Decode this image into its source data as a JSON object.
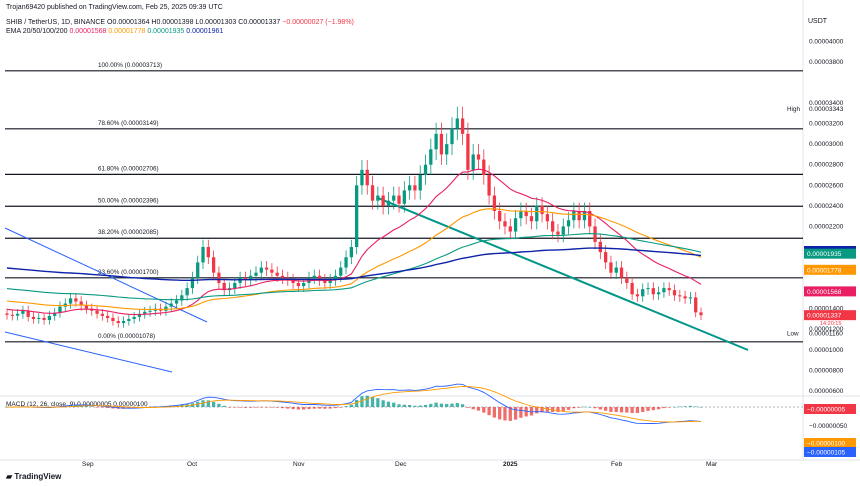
{
  "header": {
    "published": "Trojan69420 published on TradingView.com, Feb 25, 2025 09:39 UTC",
    "symbol": "SHIB / TetherUS, 1D, BINANCE",
    "ohlc_o": "O0.00001364",
    "ohlc_h": "H0.00001398",
    "ohlc_l": "L0.00001303",
    "ohlc_c": "C0.00001337",
    "ohlc_chg": "−0.00000027 (−1.98%)",
    "ema_label": "EMA 20/50/100/200",
    "ema_20": "0.00001568",
    "ema_50": "0.00001778",
    "ema_100": "0.00001935",
    "ema_200": "0.00001961"
  },
  "currency": "USDT",
  "logo": "TradingView",
  "colors": {
    "up": "#089981",
    "down": "#f23645",
    "ema20": "#e91e63",
    "ema50": "#ff9800",
    "ema100": "#089981",
    "ema200": "#0d23a8",
    "trend_blue": "#2962ff",
    "trend_green": "#009688"
  },
  "chart_data": [
    {
      "type": "candlestick",
      "title": "SHIB / TetherUS, 1D, BINANCE",
      "y_axis_labels": [
        "0.00004000",
        "0.00003800",
        "0.00003400",
        "0.00003200",
        "0.00003000",
        "0.00002800",
        "0.00002600",
        "0.00002400",
        "0.00002200",
        "0.00001400",
        "0.00001200",
        "0.00001000",
        "0.00000800",
        "0.00000600"
      ],
      "x_axis_labels": [
        "Sep",
        "Oct",
        "Nov",
        "Dec",
        "2025",
        "Feb",
        "Mar"
      ],
      "ylim": [
        5.8e-06,
        4.11e-05
      ],
      "fibonacci": [
        {
          "label": "100.00% (0.00003713)",
          "value": 3.713e-05
        },
        {
          "label": "78.60% (0.00003149)",
          "value": 3.149e-05
        },
        {
          "label": "61.80% (0.00002706)",
          "value": 2.706e-05
        },
        {
          "label": "50.00% (0.00002396)",
          "value": 2.396e-05
        },
        {
          "label": "38.20% (0.00002085)",
          "value": 2.085e-05
        },
        {
          "label": "23.60% (0.00001700)",
          "value": 1.7e-05
        },
        {
          "label": "0.00% (0.00001078)",
          "value": 1.078e-05
        }
      ],
      "high": {
        "label": "High",
        "value": "0.00003343"
      },
      "low": {
        "label": "Low",
        "value": "0.00001160"
      },
      "price_tags": [
        {
          "value": "0.00001961",
          "color": "#0d23a8"
        },
        {
          "value": "0.00001935",
          "color": "#089981"
        },
        {
          "value": "0.00001778",
          "color": "#ff9800"
        },
        {
          "value": "0.00001568",
          "color": "#e91e63"
        },
        {
          "value": "0.00001337",
          "sub": "14:20:15",
          "color": "#f23645"
        }
      ],
      "candles_close": [
        1.34e-05,
        1.332e-05,
        1.35e-05,
        1.38e-05,
        1.32e-05,
        1.3e-05,
        1.31e-05,
        1.29e-05,
        1.33e-05,
        1.36e-05,
        1.42e-05,
        1.45e-05,
        1.5e-05,
        1.47e-05,
        1.43e-05,
        1.4e-05,
        1.38e-05,
        1.35e-05,
        1.33e-05,
        1.31e-05,
        1.28e-05,
        1.26e-05,
        1.28e-05,
        1.3e-05,
        1.32e-05,
        1.35e-05,
        1.37e-05,
        1.38e-05,
        1.4e-05,
        1.38e-05,
        1.42e-05,
        1.45e-05,
        1.48e-05,
        1.53e-05,
        1.6e-05,
        1.7e-05,
        1.85e-05,
        2e-05,
        1.9e-05,
        1.75e-05,
        1.65e-05,
        1.58e-05,
        1.6e-05,
        1.65e-05,
        1.7e-05,
        1.68e-05,
        1.72e-05,
        1.75e-05,
        1.8e-05,
        1.78e-05,
        1.75e-05,
        1.72e-05,
        1.7e-05,
        1.68e-05,
        1.65e-05,
        1.62e-05,
        1.65e-05,
        1.7e-05,
        1.72e-05,
        1.68e-05,
        1.65e-05,
        1.68e-05,
        1.72e-05,
        1.8e-05,
        1.9e-05,
        2e-05,
        2.6e-05,
        2.75e-05,
        2.6e-05,
        2.45e-05,
        2.5e-05,
        2.4e-05,
        2.45e-05,
        2.5e-05,
        2.42e-05,
        2.55e-05,
        2.6e-05,
        2.55e-05,
        2.7e-05,
        2.8e-05,
        2.95e-05,
        3.1e-05,
        2.9e-05,
        3e-05,
        3.15e-05,
        3.25e-05,
        3.1e-05,
        2.75e-05,
        2.9e-05,
        2.85e-05,
        2.7e-05,
        2.5e-05,
        2.35e-05,
        2.25e-05,
        2.2e-05,
        2.15e-05,
        2.28e-05,
        2.35e-05,
        2.3e-05,
        2.25e-05,
        2.4e-05,
        2.32e-05,
        2.25e-05,
        2.15e-05,
        2.12e-05,
        2.2e-05,
        2.26e-05,
        2.35e-05,
        2.26e-05,
        2.35e-05,
        2.2e-05,
        2.05e-05,
        1.95e-05,
        1.85e-05,
        1.75e-05,
        1.8e-05,
        1.7e-05,
        1.65e-05,
        1.54e-05,
        1.52e-05,
        1.59e-05,
        1.6e-05,
        1.54e-05,
        1.56e-05,
        1.6e-05,
        1.58e-05,
        1.53e-05,
        1.52e-05,
        1.5e-05,
        1.51e-05,
        1.364e-05,
        1.337e-05
      ]
    },
    {
      "type": "histogram",
      "title": "MACD (12, 26, close, 9)",
      "y_axis_labels": [
        "0.00000000",
        "−0.00000050"
      ],
      "price_tags": [
        {
          "value": "−0.00000005",
          "color": "#f23645"
        },
        {
          "value": "−0.00000100",
          "color": "#ff9800"
        },
        {
          "value": "−0.00000105",
          "color": "#2962ff"
        }
      ],
      "visible_values": "0.00000005 0.00000100"
    }
  ]
}
